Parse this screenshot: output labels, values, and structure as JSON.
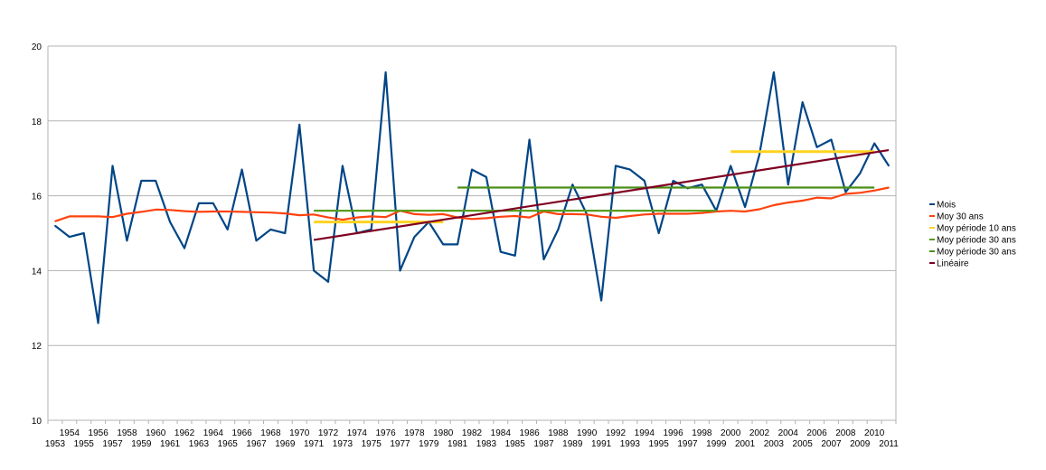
{
  "chart_data": {
    "type": "line",
    "title": "",
    "xlabel": "",
    "ylabel": "",
    "ylim": [
      10,
      20
    ],
    "yticks": [
      10,
      12,
      14,
      16,
      18,
      20
    ],
    "grid": "horizontal",
    "legend_position": "right",
    "x": [
      1953,
      1954,
      1955,
      1956,
      1957,
      1958,
      1959,
      1960,
      1961,
      1962,
      1963,
      1964,
      1965,
      1966,
      1967,
      1968,
      1969,
      1970,
      1971,
      1972,
      1973,
      1974,
      1975,
      1976,
      1977,
      1978,
      1979,
      1980,
      1981,
      1982,
      1983,
      1984,
      1985,
      1986,
      1987,
      1988,
      1989,
      1990,
      1991,
      1992,
      1993,
      1994,
      1995,
      1996,
      1997,
      1998,
      1999,
      2000,
      2001,
      2002,
      2003,
      2004,
      2005,
      2006,
      2007,
      2008,
      2009,
      2010,
      2011
    ],
    "series": [
      {
        "name": "Mois",
        "color": "#004586",
        "values": [
          15.2,
          14.9,
          15.0,
          12.6,
          16.8,
          14.8,
          16.4,
          16.4,
          15.3,
          14.6,
          15.8,
          15.8,
          15.1,
          16.7,
          14.8,
          15.1,
          15.0,
          17.9,
          14.0,
          13.7,
          16.8,
          15.0,
          15.1,
          19.3,
          14.0,
          14.9,
          15.3,
          14.7,
          14.7,
          16.7,
          16.5,
          14.5,
          14.4,
          17.5,
          14.3,
          15.1,
          16.3,
          15.5,
          13.2,
          16.8,
          16.7,
          16.4,
          15.0,
          16.4,
          16.2,
          16.3,
          15.6,
          16.8,
          15.7,
          17.1,
          19.3,
          16.3,
          18.5,
          17.3,
          17.5,
          16.1,
          16.6,
          17.4,
          16.8
        ]
      },
      {
        "name": "Moy 30 ans",
        "color": "#ff420e",
        "values": [
          15.32,
          15.45,
          15.45,
          15.45,
          15.43,
          15.52,
          15.57,
          15.63,
          15.62,
          15.59,
          15.57,
          15.58,
          15.58,
          15.57,
          15.56,
          15.55,
          15.53,
          15.48,
          15.5,
          15.42,
          15.36,
          15.42,
          15.45,
          15.43,
          15.6,
          15.51,
          15.49,
          15.51,
          15.42,
          15.38,
          15.4,
          15.44,
          15.46,
          15.42,
          15.58,
          15.51,
          15.51,
          15.5,
          15.44,
          15.41,
          15.46,
          15.5,
          15.52,
          15.52,
          15.52,
          15.54,
          15.58,
          15.6,
          15.58,
          15.64,
          15.75,
          15.82,
          15.87,
          15.95,
          15.93,
          16.05,
          16.08,
          16.14,
          16.22
        ]
      },
      {
        "name": "Moy période 10 ans",
        "color": "#ffd320",
        "segments": [
          {
            "x_start": 1971,
            "x_end": 1980,
            "y": 15.3
          },
          {
            "x_start": 2000,
            "x_end": 2010,
            "y": 17.18
          }
        ]
      },
      {
        "name": "Moy période 30 ans",
        "color": "#579d1c",
        "segments": [
          {
            "x_start": 1971,
            "x_end": 1999,
            "y": 15.6
          }
        ]
      },
      {
        "name": "Moy période 30 ans",
        "color": "#4b8f1a",
        "segments": [
          {
            "x_start": 1981,
            "x_end": 2010,
            "y": 16.22
          }
        ]
      },
      {
        "name": "Linéaire",
        "color": "#7e0021",
        "trend": {
          "x_start": 1971,
          "y_start": 14.82,
          "x_end": 2011,
          "y_end": 17.22
        }
      }
    ]
  }
}
